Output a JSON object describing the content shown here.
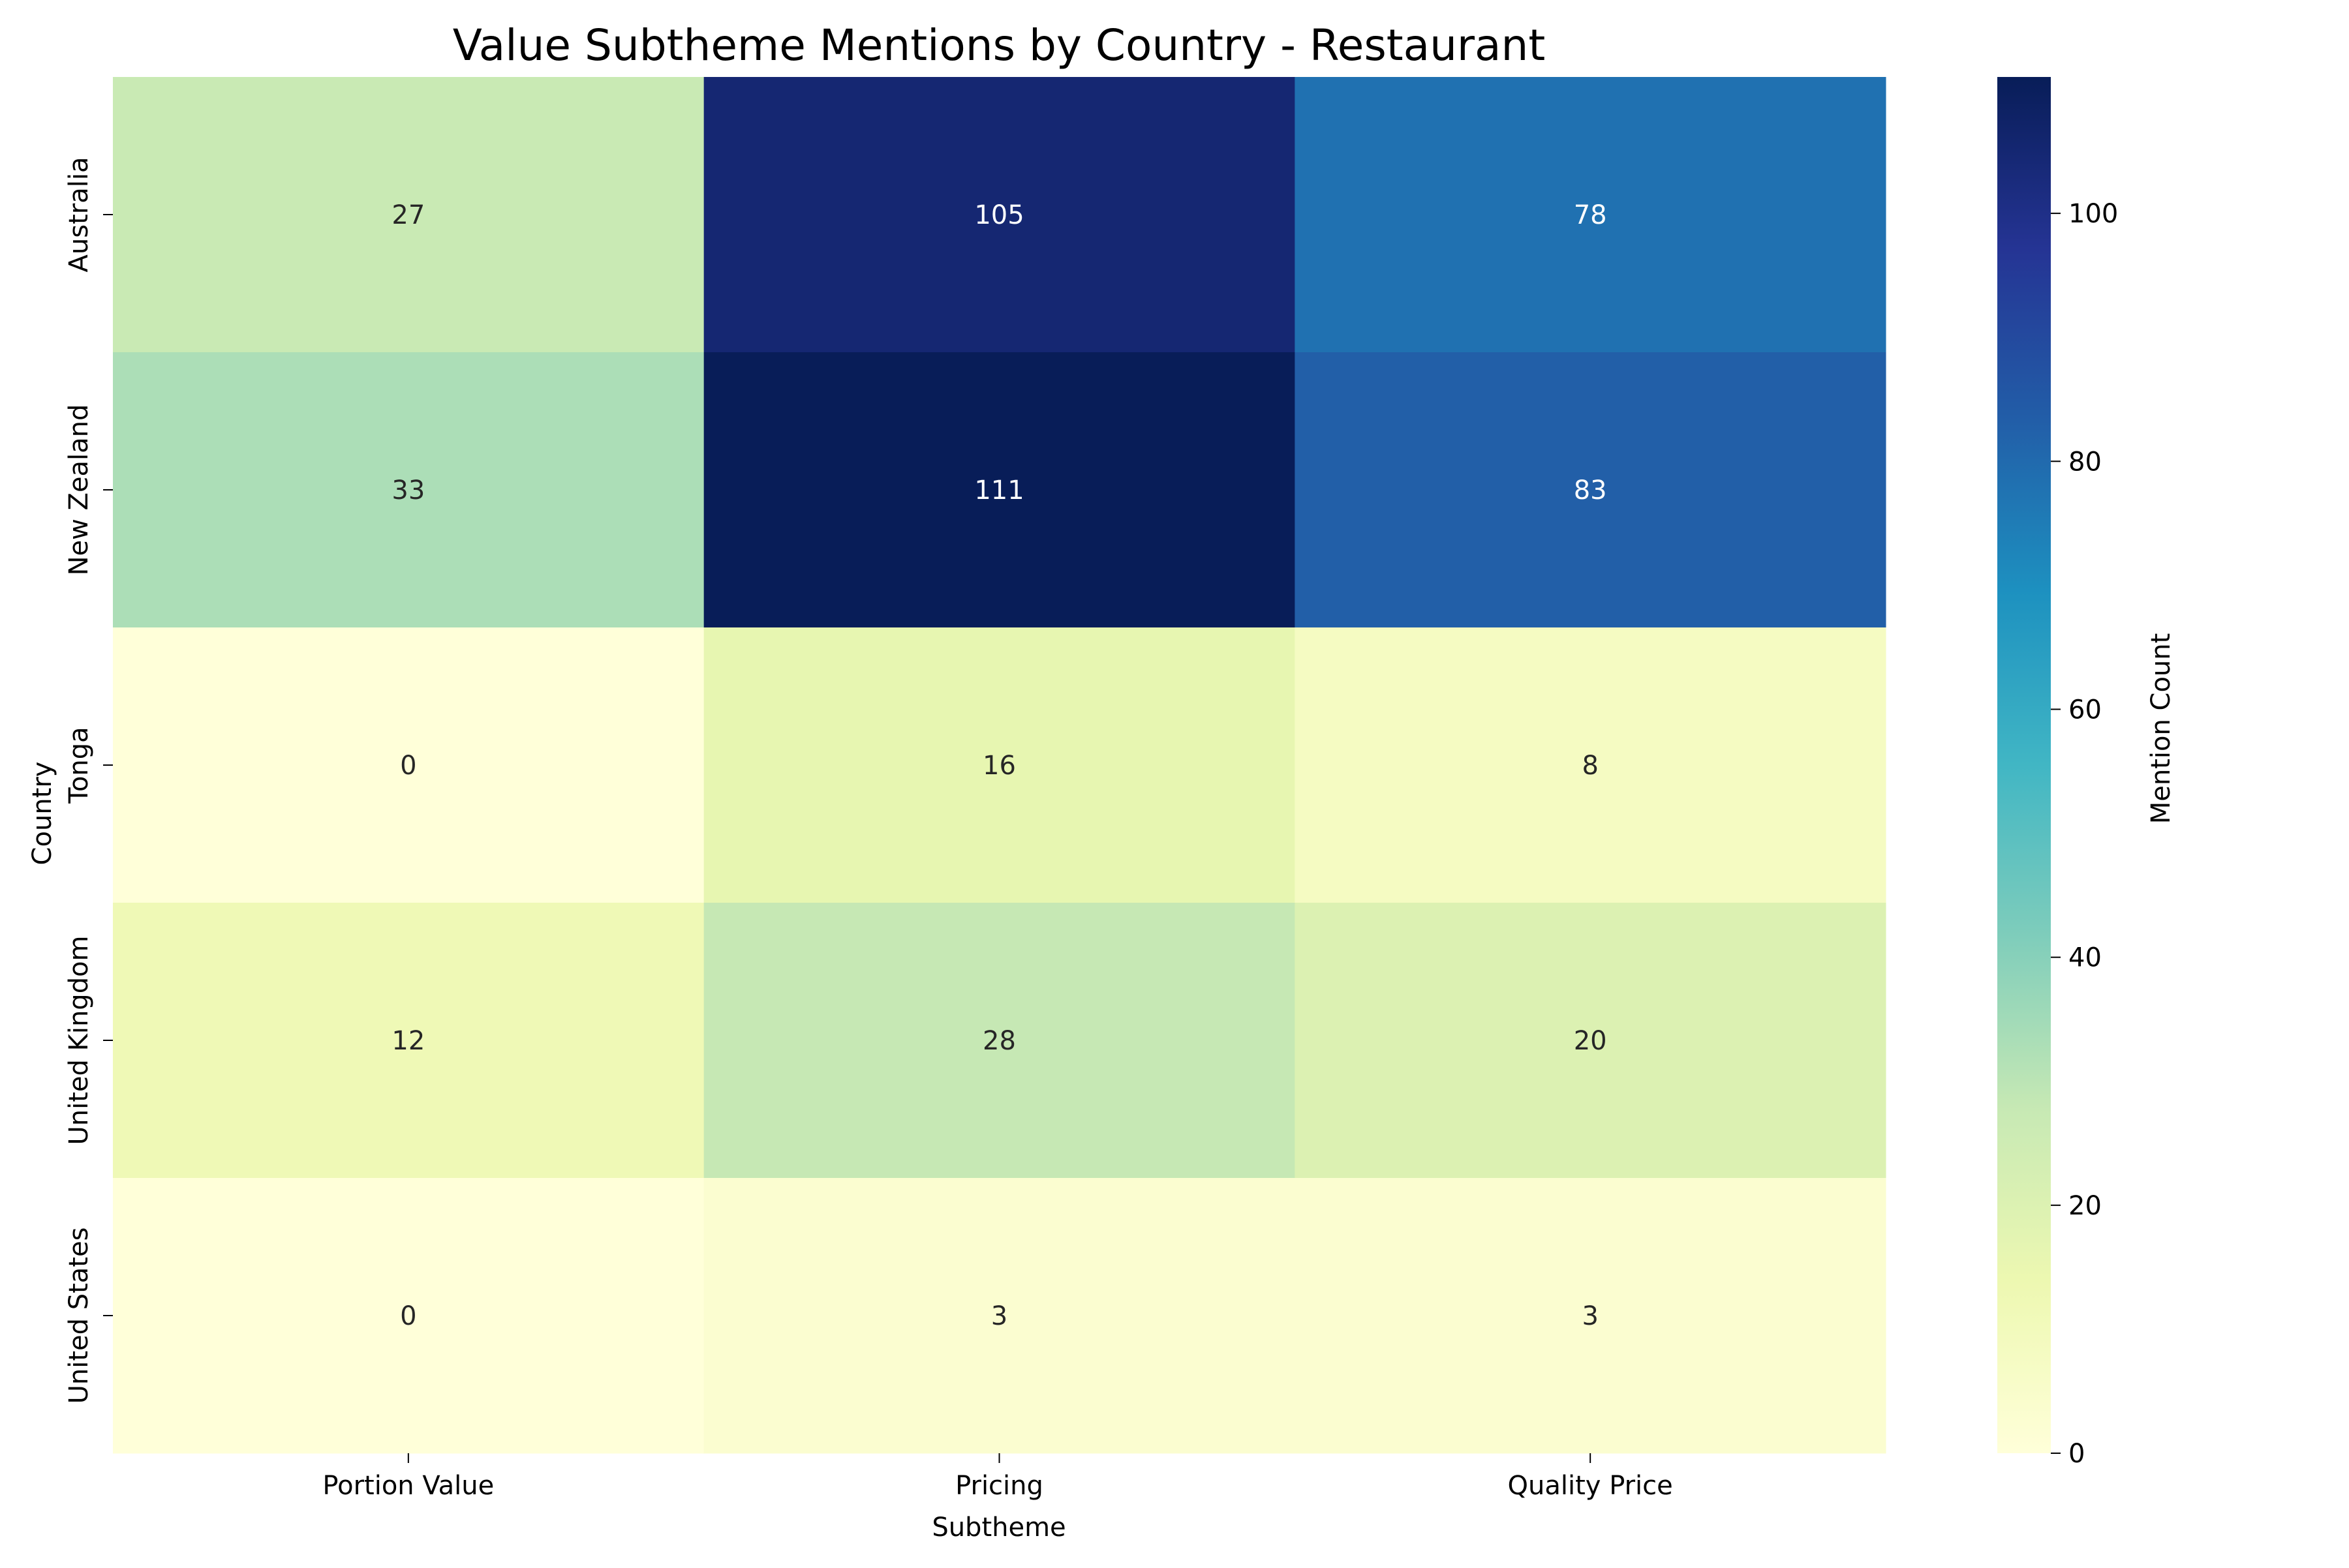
{
  "chart_data": {
    "type": "heatmap",
    "title": "Value Subtheme Mentions by Country - Restaurant",
    "xlabel": "Subtheme",
    "ylabel": "Country",
    "x_categories": [
      "Portion Value",
      "Pricing",
      "Quality Price"
    ],
    "y_categories": [
      "Australia",
      "New Zealand",
      "Tonga",
      "United Kingdom",
      "United States"
    ],
    "values": [
      [
        27,
        105,
        78
      ],
      [
        33,
        111,
        83
      ],
      [
        0,
        16,
        8
      ],
      [
        12,
        28,
        20
      ],
      [
        0,
        3,
        3
      ]
    ],
    "colorbar": {
      "label": "Mention Count",
      "range": [
        0,
        111
      ],
      "ticks": [
        0,
        20,
        40,
        60,
        80,
        100
      ],
      "colormap": "YlGnBu",
      "colors": [
        "#ffffd9",
        "#edf8b1",
        "#c7e9b4",
        "#7fcdbb",
        "#41b6c4",
        "#1d91c0",
        "#225ea8",
        "#253494",
        "#081d58"
      ]
    },
    "annotations": true,
    "grid": false
  }
}
